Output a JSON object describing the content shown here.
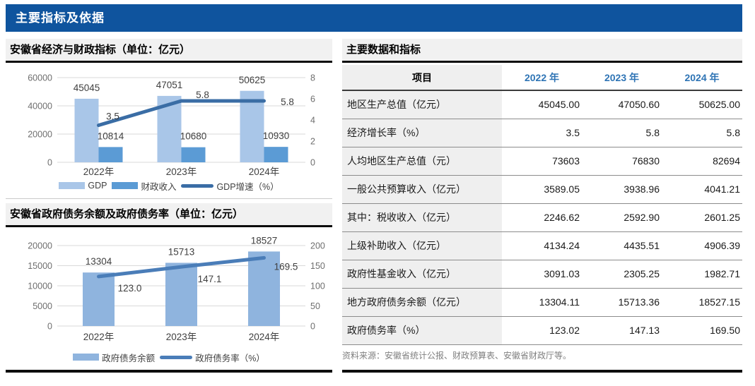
{
  "banner": {
    "title": "主要指标及依据"
  },
  "accent_colors": {
    "banner_blue": "#0f549e",
    "year_header_blue": "#2e74b5",
    "gdp_bar": "#a9c6e8",
    "fiscal_bar": "#5b9bd5",
    "gdp_growth_line": "#3a6da5",
    "debt_bar": "#8fb4de",
    "debt_ratio_line": "#4a7db8"
  },
  "right_panel": {
    "title": "主要数据和指标",
    "source": "资料来源：安徽省统计公报、财政预算表、安徽省财政厅等。",
    "table": {
      "headers": [
        "项目",
        "2022 年",
        "2023 年",
        "2024 年"
      ],
      "rows": [
        [
          "地区生产总值（亿元）",
          "45045.00",
          "47050.60",
          "50625.00"
        ],
        [
          "经济增长率（%）",
          "3.5",
          "5.8",
          "5.8"
        ],
        [
          "人均地区生产总值（元）",
          "73603",
          "76830",
          "82694"
        ],
        [
          "一般公共预算收入（亿元）",
          "3589.05",
          "3938.96",
          "4041.21"
        ],
        [
          "其中：税收收入（亿元）",
          "2246.62",
          "2592.90",
          "2601.25"
        ],
        [
          "上级补助收入（亿元）",
          "4134.24",
          "4435.51",
          "4906.39"
        ],
        [
          "政府性基金收入（亿元）",
          "3091.03",
          "2305.25",
          "1982.71"
        ],
        [
          "地方政府债务余额（亿元）",
          "13304.11",
          "15713.36",
          "18527.15"
        ],
        [
          "政府债务率（%）",
          "123.02",
          "147.13",
          "169.50"
        ]
      ]
    }
  },
  "chart_data": [
    {
      "type": "bar+line",
      "title": "安徽省经济与财政指标（单位：亿元）",
      "categories": [
        "2022年",
        "2023年",
        "2024年"
      ],
      "series": [
        {
          "name": "GDP",
          "type": "bar",
          "axis": "left",
          "color": "#a9c6e8",
          "values": [
            45045,
            47051,
            50625
          ],
          "labels": [
            "45045",
            "47051",
            "50625"
          ]
        },
        {
          "name": "财政收入",
          "type": "bar",
          "axis": "left",
          "color": "#5b9bd5",
          "values": [
            10814,
            10680,
            10930
          ],
          "labels": [
            "10814",
            "10680",
            "10930"
          ]
        },
        {
          "name": "GDP增速（%）",
          "type": "line",
          "axis": "right",
          "color": "#3a6da5",
          "values": [
            3.5,
            5.8,
            5.8
          ],
          "labels": [
            "3.5",
            "5.8",
            "5.8"
          ]
        }
      ],
      "left_axis": {
        "min": 0,
        "max": 60000,
        "ticks": [
          0,
          20000,
          40000,
          60000
        ]
      },
      "right_axis": {
        "min": 0,
        "max": 8,
        "ticks": [
          0,
          2,
          4,
          6,
          8
        ]
      },
      "grid": true,
      "legend_position": "bottom"
    },
    {
      "type": "bar+line",
      "title": "安徽省政府债务余额及政府债务率（单位：亿元）",
      "categories": [
        "2022年",
        "2023年",
        "2024年"
      ],
      "series": [
        {
          "name": "政府债务余额",
          "type": "bar",
          "axis": "left",
          "color": "#8fb4de",
          "values": [
            13304,
            15713,
            18527
          ],
          "labels": [
            "13304",
            "15713",
            "18527"
          ]
        },
        {
          "name": "政府债务率（%）",
          "type": "line",
          "axis": "right",
          "color": "#4a7db8",
          "values": [
            123.0,
            147.1,
            169.5
          ],
          "labels": [
            "123.0",
            "147.1",
            "169.5"
          ]
        }
      ],
      "left_axis": {
        "min": 0,
        "max": 20000,
        "ticks": [
          0,
          5000,
          10000,
          15000,
          20000
        ]
      },
      "right_axis": {
        "min": 0,
        "max": 200,
        "ticks": [
          0,
          50,
          100,
          150,
          200
        ]
      },
      "grid": true,
      "legend_position": "bottom"
    }
  ]
}
